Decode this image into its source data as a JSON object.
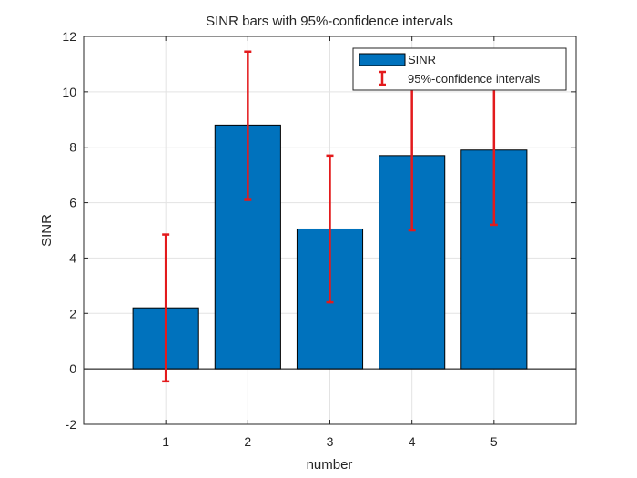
{
  "chart_data": {
    "type": "bar",
    "title": "SINR bars with 95%-confidence intervals",
    "xlabel": "number",
    "ylabel": "SINR",
    "categories": [
      "1",
      "2",
      "3",
      "4",
      "5"
    ],
    "x": [
      1,
      2,
      3,
      4,
      5
    ],
    "xlim": [
      0,
      6
    ],
    "ylim": [
      -2,
      12
    ],
    "yticks": [
      -2,
      0,
      2,
      4,
      6,
      8,
      10,
      12
    ],
    "grid": true,
    "legend_position": "top-right",
    "series": [
      {
        "name": "SINR",
        "values": [
          2.2,
          8.8,
          5.05,
          7.7,
          7.9
        ],
        "color": "#0072bd"
      }
    ],
    "error_bars": {
      "name": "95%-confidence intervals",
      "color": "#e31a1c",
      "lower": [
        -0.45,
        6.1,
        2.4,
        5.0,
        5.2
      ],
      "upper": [
        4.85,
        11.45,
        7.7,
        10.4,
        10.6
      ]
    }
  }
}
